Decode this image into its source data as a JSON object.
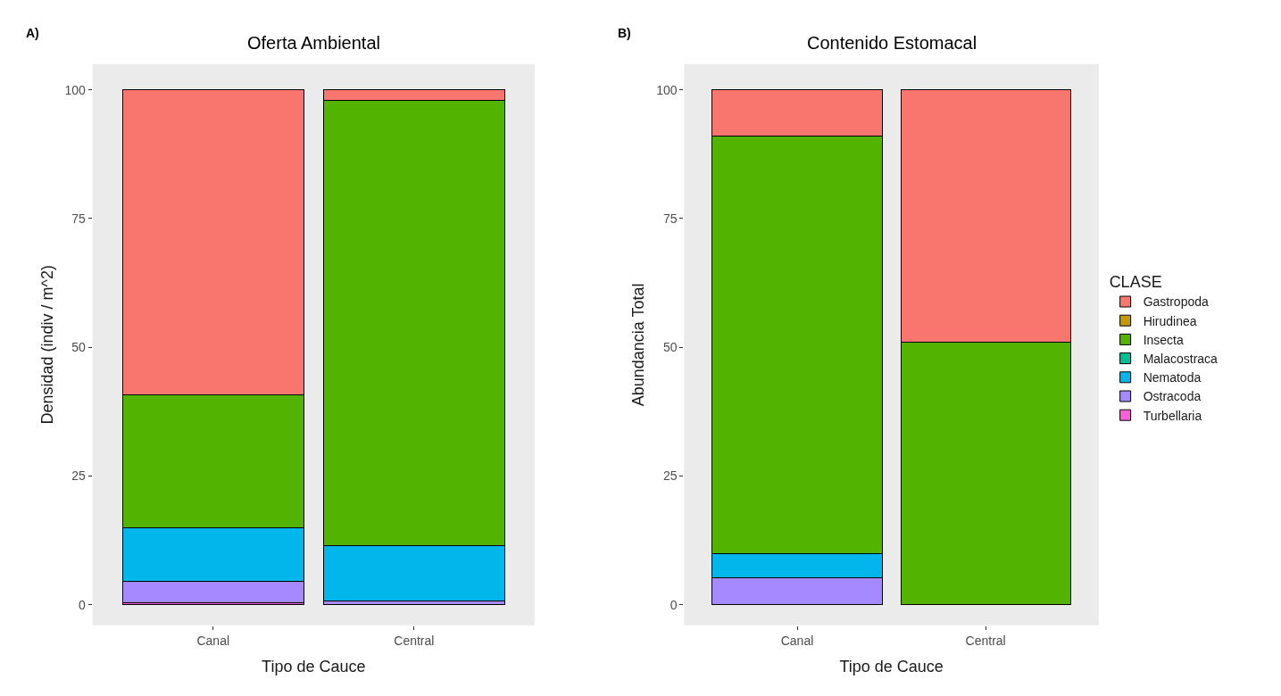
{
  "chart_data": [
    {
      "type": "bar",
      "title": "Oferta Ambiental",
      "xlabel": "Tipo de Cauce",
      "ylabel": "Densidad (indiv / m^2)",
      "annotations": [
        "A)"
      ],
      "categories": [
        "Canal",
        "Central"
      ],
      "stacked": true,
      "ylim": [
        -4,
        105
      ],
      "yticks": [
        0,
        25,
        50,
        75,
        100
      ],
      "grid": false,
      "series": [
        {
          "color": "#fb61d7",
          "values": [
            0.4,
            null
          ]
        },
        {
          "color": "#a58aff",
          "values": [
            4.2,
            0.8
          ]
        },
        {
          "color": "#00b6eb",
          "values": [
            10.3,
            10.7
          ]
        },
        {
          "color": "#53b400",
          "values": [
            25.8,
            86.5
          ]
        },
        {
          "color": "#f8766d",
          "values": [
            59.3,
            2.0
          ]
        }
      ]
    },
    {
      "type": "bar",
      "title": "Contenido Estomacal",
      "xlabel": "Tipo de Cauce",
      "ylabel": "Abundancia Total",
      "annotations": [
        "B)"
      ],
      "categories": [
        "Canal",
        "Central"
      ],
      "stacked": true,
      "ylim": [
        -4,
        105
      ],
      "yticks": [
        0,
        25,
        50,
        75,
        100
      ],
      "grid": false,
      "legend": "right",
      "legend_title": "CLASE",
      "series": [
        {
          "name": "Turbellaria",
          "color": "#fb61d7",
          "values": [
            null,
            null
          ]
        },
        {
          "name": "Ostracoda",
          "color": "#a58aff",
          "values": [
            5.2,
            null
          ]
        },
        {
          "name": "Nematoda",
          "color": "#00b6eb",
          "values": [
            4.8,
            null
          ]
        },
        {
          "name": "Malacostraca",
          "color": "#00c094",
          "values": [
            null,
            null
          ]
        },
        {
          "name": "Insecta",
          "color": "#53b400",
          "values": [
            81.0,
            51.0
          ]
        },
        {
          "name": "Hirudinea",
          "color": "#c49a00",
          "values": [
            null,
            null
          ]
        },
        {
          "name": "Gastropoda",
          "color": "#f8766d",
          "values": [
            9.0,
            49.0
          ]
        }
      ]
    }
  ]
}
